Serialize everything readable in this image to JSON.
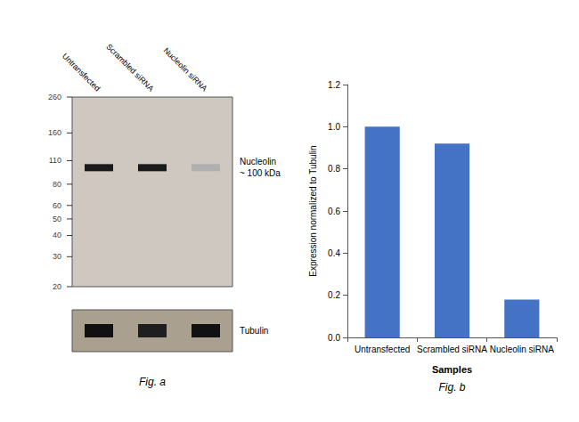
{
  "chart_data": [
    {
      "type": "blot",
      "categories": [
        "Untransfected",
        "Scrambled siRNA",
        "Nucleolin siRNA"
      ],
      "log": "y",
      "ylim": [
        20,
        260
      ],
      "yticks": [
        260,
        160,
        110,
        80,
        60,
        50,
        40,
        30,
        20
      ],
      "color": "#cec8c0",
      "series": [
        {
          "name": "Nucleolin\n~ 100 kDa",
          "values": [
            100,
            100,
            100
          ],
          "colors": [
            "#1a1a1a",
            "#1a1a1a",
            "#b0b0b0"
          ]
        }
      ]
    },
    {
      "type": "blot",
      "categories": [
        "Untransfected",
        "Scrambled siRNA",
        "Nucleolin siRNA"
      ],
      "tick_labels": false,
      "color": "#aaa090",
      "series": [
        {
          "name": "Tubulin",
          "colors": [
            "#111111",
            "#1e1e1e",
            "#111111"
          ]
        }
      ],
      "annotations": [
        "Fig. a"
      ]
    },
    {
      "type": "bar",
      "categories": [
        "Untransfected",
        "Scrambled siRNA",
        "Nucleolin siRNA"
      ],
      "values": [
        1.0,
        0.92,
        0.18
      ],
      "color": "#4472C4",
      "xlabel": "Samples",
      "ylabel": "Expression normalized to Tubulin",
      "ylim": [
        0,
        1.2
      ],
      "yticks": [
        {
          "value": 0,
          "label": "0.0"
        },
        0.2,
        0.4,
        0.6,
        0.8,
        {
          "value": 1.0,
          "label": "1.0"
        },
        1.2
      ],
      "grid": false,
      "annotations": [
        "Fig. b"
      ]
    }
  ]
}
